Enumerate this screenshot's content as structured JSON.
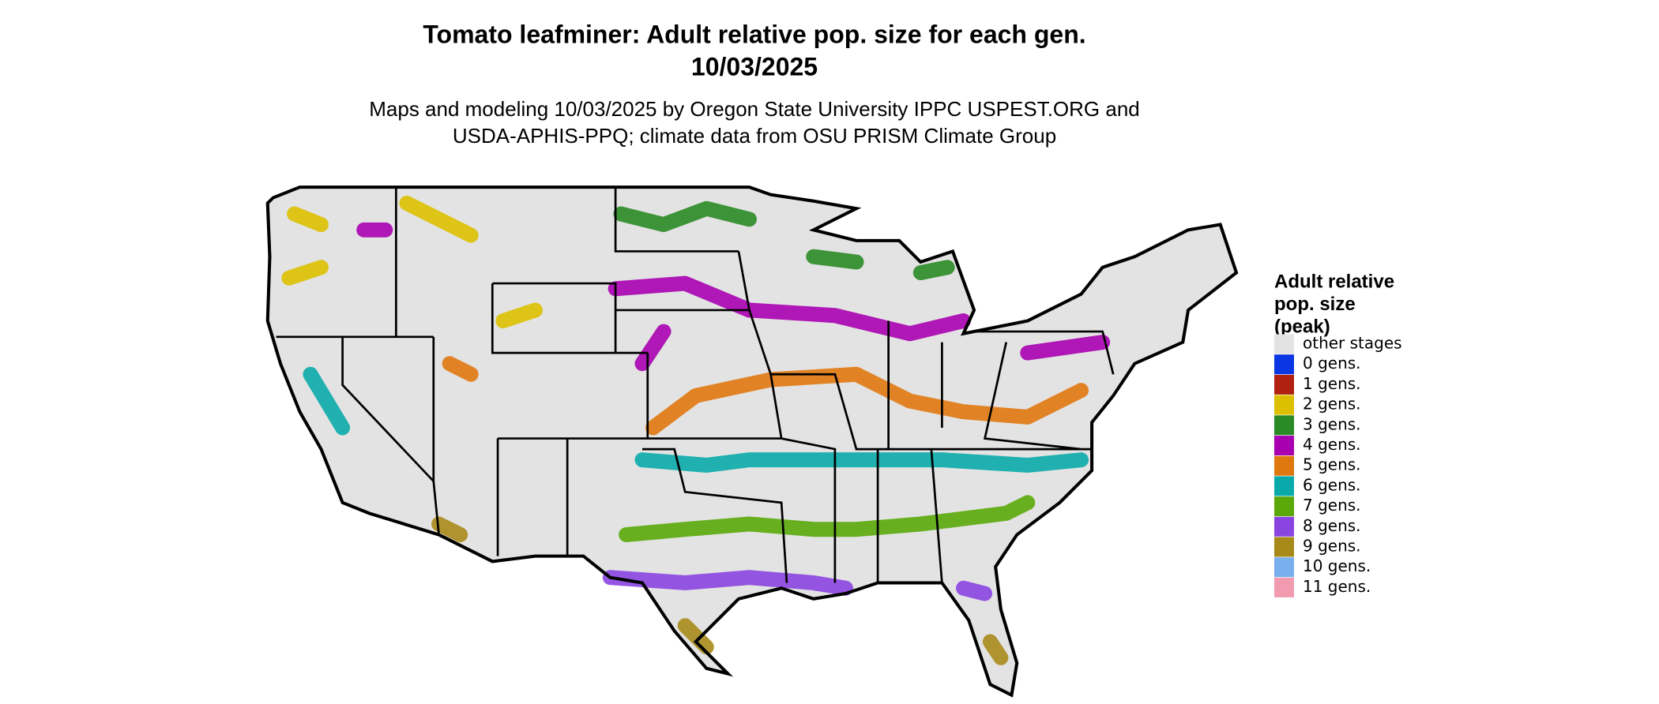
{
  "header": {
    "title_line1": "Tomato leafminer: Adult relative pop. size for each gen.",
    "title_line2": "10/03/2025",
    "subtitle_line1": "Maps and modeling 10/03/2025 by Oregon State University IPPC USPEST.ORG and",
    "subtitle_line2": "USDA-APHIS-PPQ; climate data from OSU PRISM Climate Group"
  },
  "legend": {
    "title": [
      "Adult relative",
      "pop. size",
      "(peak)"
    ],
    "items": [
      {
        "label": "other stages",
        "color": "#e3e3e3"
      },
      {
        "label": "0 gens.",
        "color": "#0a37e3"
      },
      {
        "label": "1 gens.",
        "color": "#b0220f"
      },
      {
        "label": "2 gens.",
        "color": "#dcc000"
      },
      {
        "label": "3 gens.",
        "color": "#2a8a25"
      },
      {
        "label": "4 gens.",
        "color": "#a800b0"
      },
      {
        "label": "5 gens.",
        "color": "#e07810"
      },
      {
        "label": "6 gens.",
        "color": "#0aaaaa"
      },
      {
        "label": "7 gens.",
        "color": "#5aa80a"
      },
      {
        "label": "8 gens.",
        "color": "#8a45e0"
      },
      {
        "label": "9 gens.",
        "color": "#a88a1a"
      },
      {
        "label": "10 gens.",
        "color": "#78b0ee"
      },
      {
        "label": "11 gens.",
        "color": "#f29ab0"
      }
    ]
  }
}
